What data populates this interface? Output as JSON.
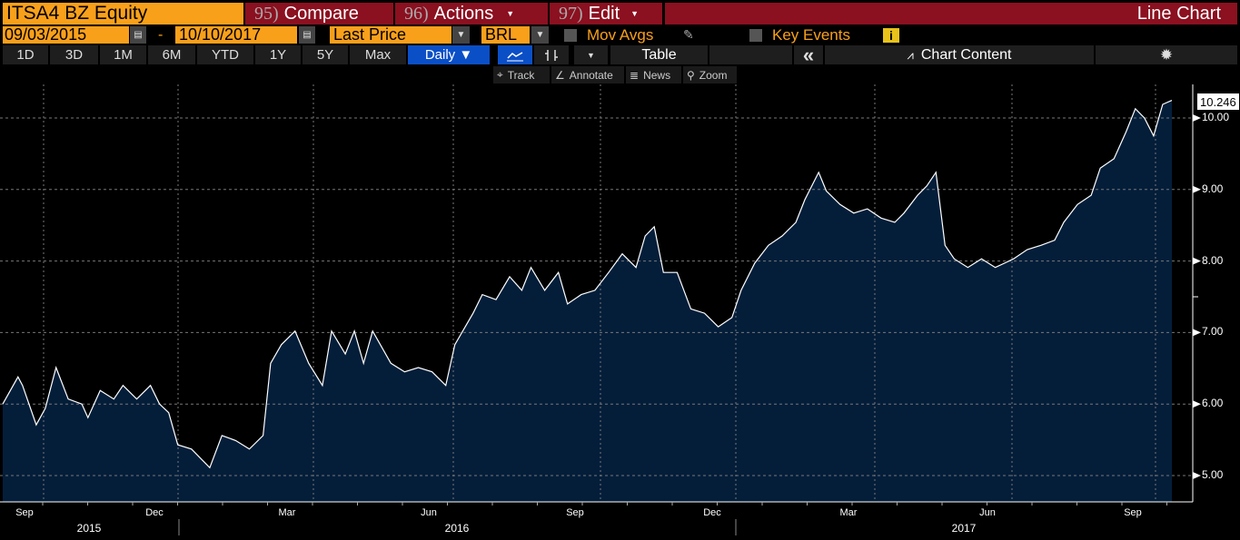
{
  "header": {
    "ticker": "ITSA4 BZ Equity",
    "compare_num": "95)",
    "compare": "Compare",
    "actions_num": "96)",
    "actions": "Actions",
    "edit_num": "97)",
    "edit": "Edit",
    "title": "Line Chart"
  },
  "controls": {
    "start_date": "09/03/2015",
    "dash": "-",
    "end_date": "10/10/2017",
    "field": "Last Price",
    "currency": "BRL",
    "mov_avgs": "Mov Avgs",
    "key_events": "Key Events",
    "info": "i"
  },
  "ranges": [
    "1D",
    "3D",
    "1M",
    "6M",
    "YTD",
    "1Y",
    "5Y",
    "Max"
  ],
  "periodicity": "Daily ▼",
  "toolbar": {
    "table": "Table",
    "collapse": "«",
    "chart_content": "Chart Content",
    "track": "Track",
    "annotate": "Annotate",
    "news": "News",
    "zoom": "Zoom"
  },
  "colors": {
    "orange": "#f9a01b",
    "red": "#8b1020",
    "area": "#041e3a",
    "blue": "#0b4fc7"
  },
  "chart_data": {
    "type": "area",
    "start_date": "2015-09-03",
    "end_date": "2017-10-10",
    "x_unit": "days since start",
    "last_value": "10.246",
    "ylim": [
      4.8,
      10.5
    ],
    "yticks": [
      "5.00",
      "6.00",
      "7.00",
      "8.00",
      "9.00",
      "10.00"
    ],
    "month_labels": [
      "Sep",
      "Dec",
      "Mar",
      "Jun",
      "Sep",
      "Dec",
      "Mar",
      "Jun",
      "Sep"
    ],
    "year_labels": [
      "2015",
      "2016",
      "2017"
    ],
    "points": [
      [
        0,
        6.0
      ],
      [
        10,
        6.38
      ],
      [
        13,
        6.26
      ],
      [
        22,
        5.71
      ],
      [
        28,
        5.94
      ],
      [
        35,
        6.51
      ],
      [
        43,
        6.07
      ],
      [
        52,
        6.0
      ],
      [
        56,
        5.81
      ],
      [
        64,
        6.19
      ],
      [
        73,
        6.07
      ],
      [
        79,
        6.26
      ],
      [
        88,
        6.07
      ],
      [
        97,
        6.26
      ],
      [
        103,
        6.0
      ],
      [
        109,
        5.88
      ],
      [
        115,
        5.43
      ],
      [
        124,
        5.37
      ],
      [
        136,
        5.11
      ],
      [
        144,
        5.56
      ],
      [
        153,
        5.49
      ],
      [
        162,
        5.37
      ],
      [
        171,
        5.56
      ],
      [
        176,
        6.57
      ],
      [
        183,
        6.83
      ],
      [
        192,
        7.02
      ],
      [
        201,
        6.57
      ],
      [
        210,
        6.26
      ],
      [
        216,
        7.02
      ],
      [
        225,
        6.7
      ],
      [
        231,
        7.02
      ],
      [
        237,
        6.57
      ],
      [
        243,
        7.02
      ],
      [
        255,
        6.57
      ],
      [
        264,
        6.45
      ],
      [
        273,
        6.51
      ],
      [
        282,
        6.45
      ],
      [
        291,
        6.26
      ],
      [
        297,
        6.83
      ],
      [
        309,
        7.27
      ],
      [
        315,
        7.53
      ],
      [
        324,
        7.46
      ],
      [
        333,
        7.78
      ],
      [
        341,
        7.59
      ],
      [
        347,
        7.91
      ],
      [
        356,
        7.59
      ],
      [
        365,
        7.84
      ],
      [
        371,
        7.4
      ],
      [
        380,
        7.53
      ],
      [
        389,
        7.59
      ],
      [
        398,
        7.84
      ],
      [
        407,
        8.1
      ],
      [
        416,
        7.91
      ],
      [
        422,
        8.35
      ],
      [
        428,
        8.48
      ],
      [
        434,
        7.84
      ],
      [
        443,
        7.84
      ],
      [
        452,
        7.33
      ],
      [
        461,
        7.27
      ],
      [
        470,
        7.08
      ],
      [
        479,
        7.21
      ],
      [
        485,
        7.59
      ],
      [
        494,
        7.97
      ],
      [
        503,
        8.22
      ],
      [
        512,
        8.35
      ],
      [
        521,
        8.54
      ],
      [
        527,
        8.86
      ],
      [
        536,
        9.24
      ],
      [
        541,
        8.98
      ],
      [
        550,
        8.79
      ],
      [
        559,
        8.67
      ],
      [
        568,
        8.73
      ],
      [
        577,
        8.6
      ],
      [
        586,
        8.54
      ],
      [
        592,
        8.67
      ],
      [
        601,
        8.92
      ],
      [
        607,
        9.05
      ],
      [
        613,
        9.24
      ],
      [
        619,
        8.22
      ],
      [
        625,
        8.03
      ],
      [
        634,
        7.91
      ],
      [
        643,
        8.03
      ],
      [
        652,
        7.91
      ],
      [
        658,
        7.97
      ],
      [
        664,
        8.03
      ],
      [
        673,
        8.16
      ],
      [
        682,
        8.22
      ],
      [
        691,
        8.29
      ],
      [
        697,
        8.54
      ],
      [
        706,
        8.79
      ],
      [
        715,
        8.92
      ],
      [
        721,
        9.3
      ],
      [
        730,
        9.43
      ],
      [
        738,
        9.81
      ],
      [
        744,
        10.13
      ],
      [
        750,
        10.0
      ],
      [
        756,
        9.75
      ],
      [
        762,
        10.19
      ],
      [
        768,
        10.246
      ]
    ]
  }
}
